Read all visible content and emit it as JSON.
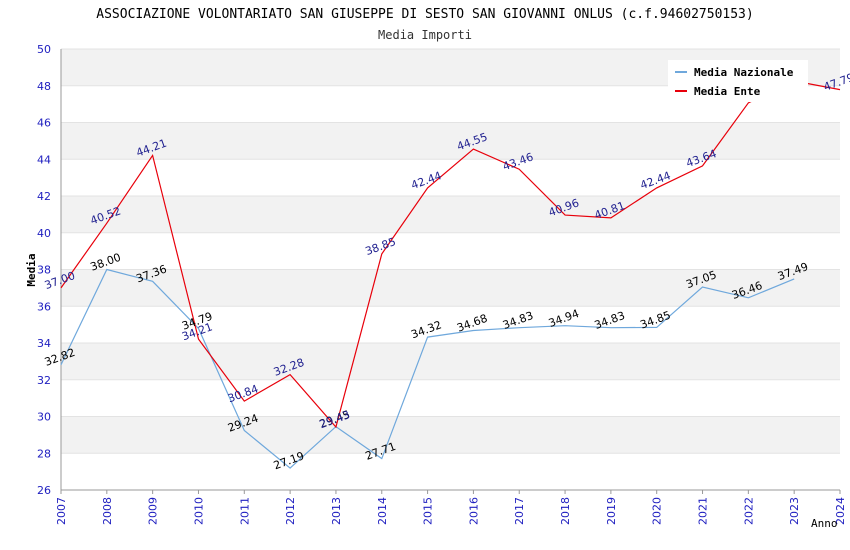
{
  "chart_data": {
    "type": "line",
    "title": "ASSOCIAZIONE VOLONTARIATO SAN GIUSEPPE DI SESTO SAN GIOVANNI ONLUS (c.f.94602750153)",
    "subtitle": "Media Importi",
    "xlabel": "Anno",
    "ylabel": "Media",
    "x": [
      "2007",
      "2008",
      "2009",
      "2010",
      "2011",
      "2012",
      "2013",
      "2014",
      "2015",
      "2016",
      "2017",
      "2018",
      "2019",
      "2020",
      "2021",
      "2022",
      "2023",
      "2024"
    ],
    "ylim": [
      26,
      50
    ],
    "yticks": [
      "26",
      "28",
      "30",
      "32",
      "34",
      "36",
      "38",
      "40",
      "42",
      "44",
      "46",
      "48",
      "50"
    ],
    "grid": true,
    "legend_position": "top-right",
    "series": [
      {
        "name": "Media Nazionale",
        "color": "#6fa8dc",
        "label_color": "#000000",
        "values": [
          32.82,
          38.0,
          37.36,
          34.79,
          29.24,
          27.19,
          29.45,
          27.71,
          34.32,
          34.68,
          34.83,
          34.94,
          34.83,
          34.85,
          37.05,
          36.46,
          37.49,
          null
        ],
        "labels": [
          "32.82",
          "38.00",
          "37.36",
          "34.79",
          "29.24",
          "27.19",
          "29.45",
          "27.71",
          "34.32",
          "34.68",
          "34.83",
          "34.94",
          "34.83",
          "34.85",
          "37.05",
          "36.46",
          "37.49",
          ""
        ]
      },
      {
        "name": "Media Ente",
        "color": "#e8000b",
        "label_color": "#1f1f8f",
        "values": [
          37.0,
          40.52,
          44.21,
          34.21,
          30.84,
          32.28,
          29.43,
          38.85,
          42.44,
          44.55,
          43.46,
          40.96,
          40.81,
          42.44,
          43.64,
          47.07,
          48.26,
          47.79
        ],
        "labels": [
          "37.00",
          "40.52",
          "44.21",
          "34.21",
          "30.84",
          "32.28",
          "29.43",
          "38.85",
          "42.44",
          "44.55",
          "43.46",
          "40.96",
          "40.81",
          "42.44",
          "43.64",
          "",
          "",
          "47.79"
        ]
      }
    ]
  }
}
